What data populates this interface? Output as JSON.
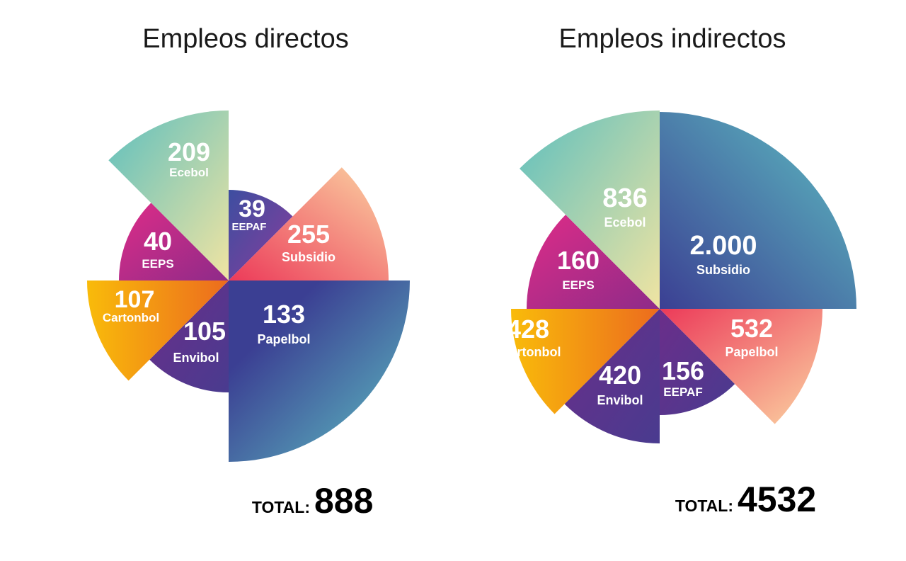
{
  "chart_data": [
    {
      "type": "pie",
      "subtype": "polar-area",
      "title": "Empleos directos",
      "slices": [
        {
          "label": "Ecebol",
          "display": "209",
          "value": 209
        },
        {
          "label": "EEPAF",
          "display": "39",
          "value": 39
        },
        {
          "label": "Subsidio",
          "display": "255",
          "value": 255
        },
        {
          "label": "Papelbol",
          "display": "133",
          "value": 133
        },
        {
          "label": "Envibol",
          "display": "105",
          "value": 105
        },
        {
          "label": "Cartonbol",
          "display": "107",
          "value": 107
        },
        {
          "label": "EEPS",
          "display": "40",
          "value": 40
        }
      ],
      "total_label": "TOTAL:",
      "total_value": "888"
    },
    {
      "type": "pie",
      "subtype": "polar-area",
      "title": "Empleos indirectos",
      "slices": [
        {
          "label": "Subsidio",
          "display": "2.000",
          "value": 2000
        },
        {
          "label": "Papelbol",
          "display": "532",
          "value": 532
        },
        {
          "label": "EEPAF",
          "display": "156",
          "value": 156
        },
        {
          "label": "Envibol",
          "display": "420",
          "value": 420
        },
        {
          "label": "Cartonbol",
          "display": "428",
          "value": 428
        },
        {
          "label": "EEPS",
          "display": "160",
          "value": 160
        },
        {
          "label": "Ecebol",
          "display": "836",
          "value": 836
        }
      ],
      "total_label": "TOTAL:",
      "total_value": "4532"
    }
  ],
  "colors": {
    "teal_yellow": [
      "#5ebfbe",
      "#f0e4a2"
    ],
    "blue_purple": [
      "#3d4ea0",
      "#8a3d9c"
    ],
    "red_peach": [
      "#ec3a59",
      "#fbd3a2"
    ],
    "blue_teal": [
      "#3b3f93",
      "#5ec0c2"
    ],
    "purple": [
      "#6b2e8a",
      "#493b8f"
    ],
    "orange_yellow": [
      "#f9bb0a",
      "#ec6b1e"
    ],
    "magenta": [
      "#de2c87",
      "#8e2b89"
    ]
  }
}
